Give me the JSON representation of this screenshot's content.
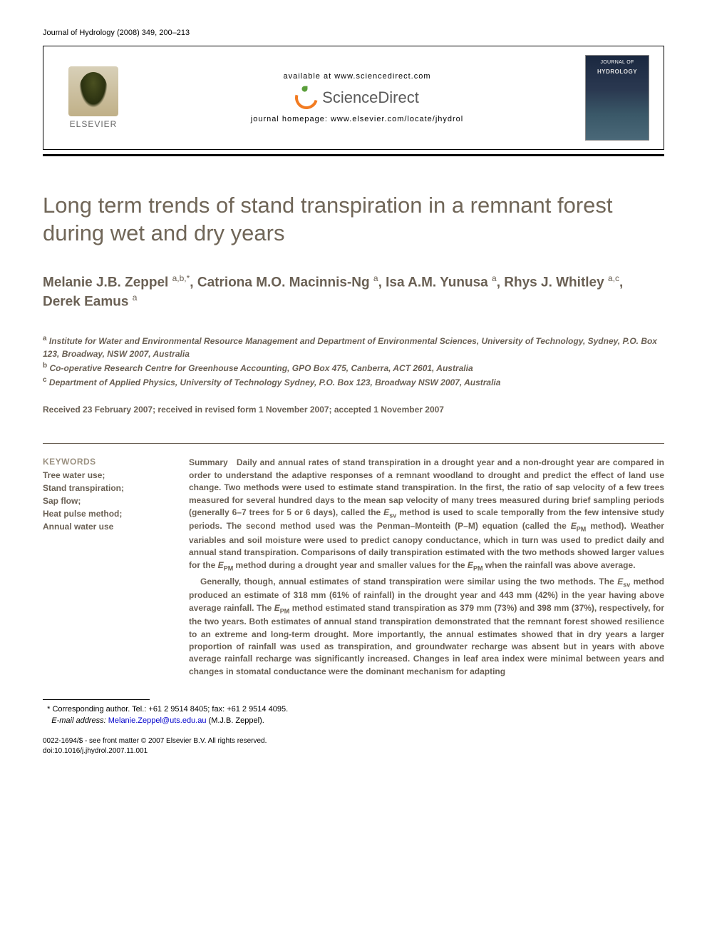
{
  "journal_ref": "Journal of Hydrology (2008) 349, 200–213",
  "header": {
    "available_at": "available at www.sciencedirect.com",
    "sd_brand": "ScienceDirect",
    "homepage_label": "journal homepage: www.elsevier.com/locate/jhydrol",
    "elsevier": "ELSEVIER",
    "cover_top": "JOURNAL OF",
    "cover_name": "HYDROLOGY"
  },
  "title": "Long term trends of stand transpiration in a remnant forest during wet and dry years",
  "authors_html": "Melanie J.B. Zeppel <sup>a,b,*</sup>, Catriona M.O. Macinnis-Ng <sup>a</sup>, Isa A.M. Yunusa <sup>a</sup>, Rhys J. Whitley <sup>a,c</sup>, Derek Eamus <sup>a</sup>",
  "affiliations": {
    "a": "Institute for Water and Environmental Resource Management and Department of Environmental Sciences, University of Technology, Sydney, P.O. Box 123, Broadway, NSW 2007, Australia",
    "b": "Co-operative Research Centre for Greenhouse Accounting, GPO Box 475, Canberra, ACT 2601, Australia",
    "c": "Department of Applied Physics, University of Technology Sydney, P.O. Box 123, Broadway NSW 2007, Australia"
  },
  "dates": "Received 23 February 2007; received in revised form 1 November 2007; accepted 1 November 2007",
  "keywords": {
    "heading": "KEYWORDS",
    "items": [
      "Tree water use;",
      "Stand transpiration;",
      "Sap flow;",
      "Heat pulse method;",
      "Annual water use"
    ]
  },
  "summary": {
    "label": "Summary",
    "p1": "Daily and annual rates of stand transpiration in a drought year and a non-drought year are compared in order to understand the adaptive responses of a remnant woodland to drought and predict the effect of land use change. Two methods were used to estimate stand transpiration. In the first, the ratio of sap velocity of a few trees measured for several hundred days to the mean sap velocity of many trees measured during brief sampling periods (generally 6–7 trees for 5 or 6 days), called the Esv method is used to scale temporally from the few intensive study periods. The second method used was the Penman–Monteith (P–M) equation (called the EPM method). Weather variables and soil moisture were used to predict canopy conductance, which in turn was used to predict daily and annual stand transpiration. Comparisons of daily transpiration estimated with the two methods showed larger values for the EPM method during a drought year and smaller values for the EPM when the rainfall was above average.",
    "p2": "Generally, though, annual estimates of stand transpiration were similar using the two methods. The Esv method produced an estimate of 318 mm (61% of rainfall) in the drought year and 443 mm (42%) in the year having above average rainfall. The EPM method estimated stand transpiration as 379 mm (73%) and 398 mm (37%), respectively, for the two years. Both estimates of annual stand transpiration demonstrated that the remnant forest showed resilience to an extreme and long-term drought. More importantly, the annual estimates showed that in dry years a larger proportion of rainfall was used as transpiration, and groundwater recharge was absent but in years with above average rainfall recharge was significantly increased. Changes in leaf area index were minimal between years and changes in stomatal conductance were the dominant mechanism for adapting"
  },
  "footnote": {
    "corresponding": "Corresponding author. Tel.: +61 2 9514 8405; fax: +61 2 9514 4095.",
    "email_label": "E-mail address:",
    "email": "Melanie.Zeppel@uts.edu.au",
    "email_suffix": "(M.J.B. Zeppel)."
  },
  "copyright": {
    "line1": "0022-1694/$ - see front matter © 2007 Elsevier B.V. All rights reserved.",
    "line2": "doi:10.1016/j.jhydrol.2007.11.001"
  },
  "colors": {
    "text_main": "#6a6054",
    "text_light": "#9a9080",
    "rule": "#000000",
    "link": "#0000cc",
    "sd_orange": "#f27b21",
    "sd_green": "#5a9e3a"
  }
}
